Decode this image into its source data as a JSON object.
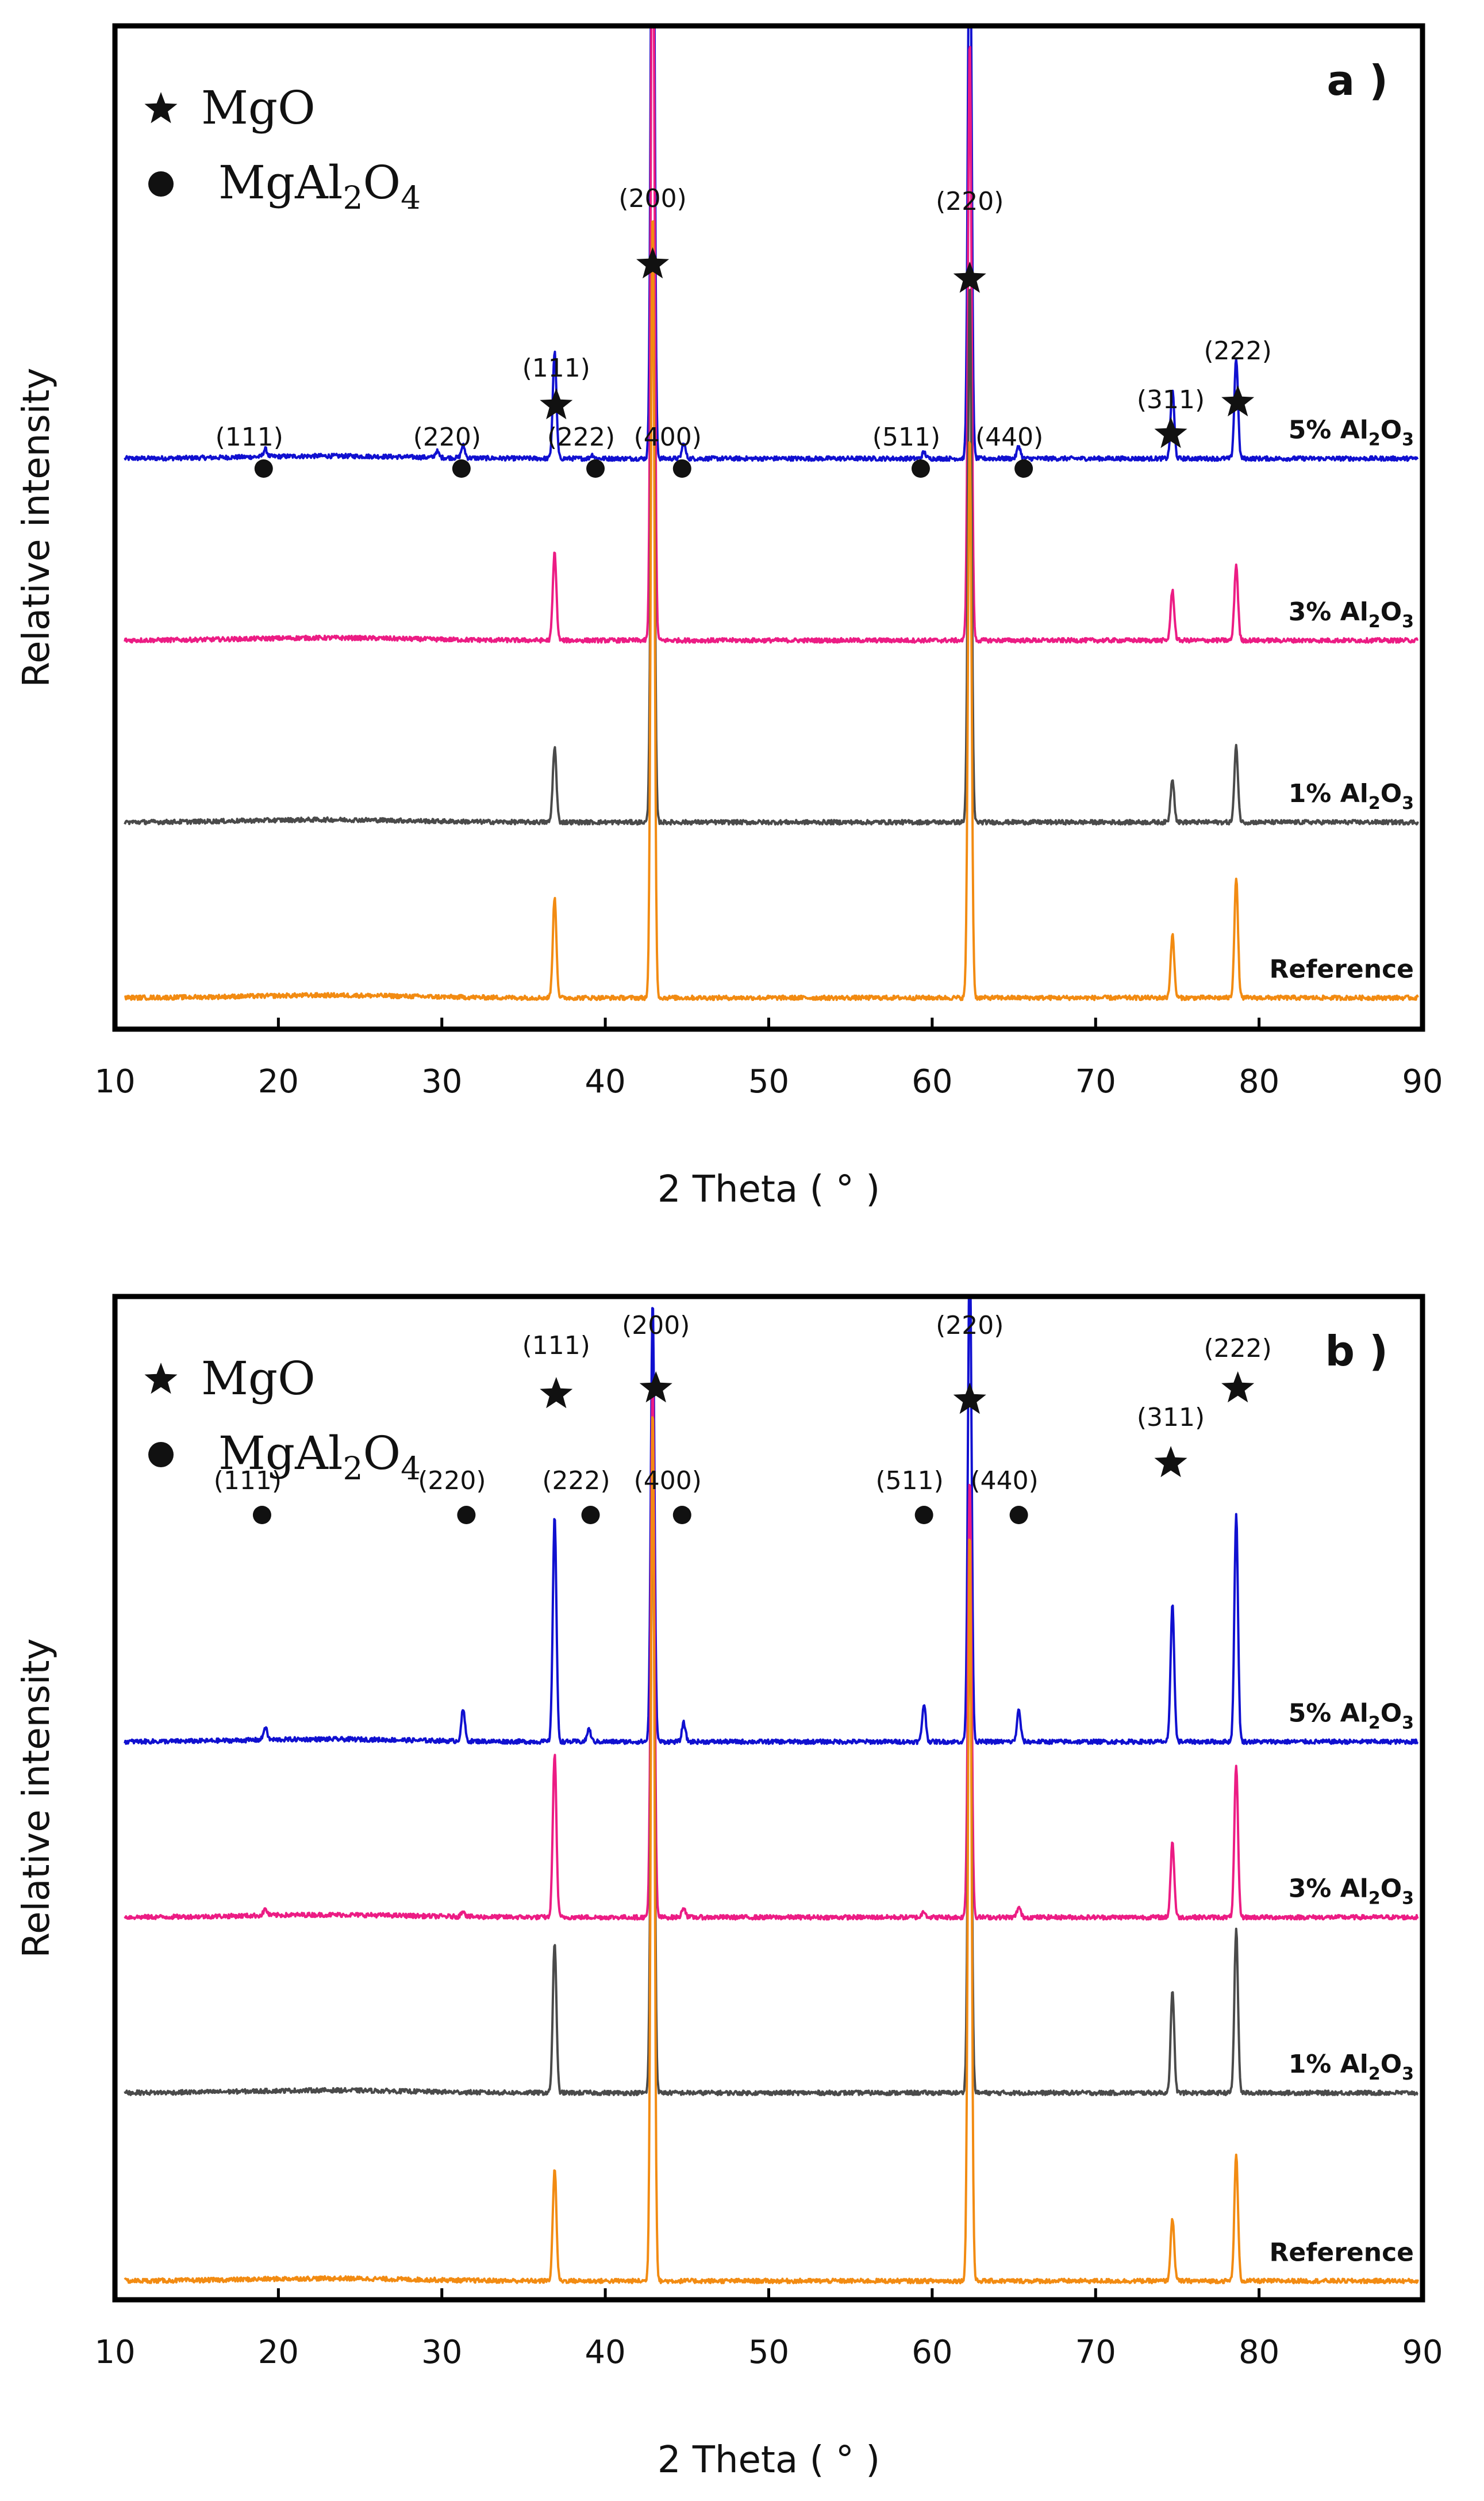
{
  "figure": {
    "legend": {
      "mgo_label": "MgO",
      "spinel_label_base": "MgAl",
      "spinel_sub1": "2",
      "spinel_mid": "O",
      "spinel_sub2": "4"
    },
    "x_axis_label": "2 Theta ( ° )",
    "y_axis_label": "Relative intensity"
  },
  "chart_data": [
    {
      "type": "line",
      "panel_label": "a )",
      "title": "",
      "xlabel": "2 Theta ( ° )",
      "ylabel": "Relative intensity",
      "xlim": [
        10,
        90
      ],
      "xticks": [
        10,
        20,
        30,
        40,
        50,
        60,
        70,
        80,
        90
      ],
      "yticks": [],
      "grid": false,
      "series": [
        {
          "name": "5% Al2O3",
          "label": "5% Al",
          "sub1": "2",
          "mid": "O",
          "sub2": "3",
          "color": "#1010d0",
          "baseline": 4.55,
          "peaks": [
            [
              19.2,
              0.06
            ],
            [
              29.7,
              0.05
            ],
            [
              31.3,
              0.1
            ],
            [
              36.9,
              0.85
            ],
            [
              39.2,
              0.03
            ],
            [
              42.9,
              6.0
            ],
            [
              44.8,
              0.12
            ],
            [
              59.5,
              0.05
            ],
            [
              62.3,
              4.8
            ],
            [
              65.3,
              0.1
            ],
            [
              74.7,
              0.55
            ],
            [
              78.6,
              0.8
            ]
          ]
        },
        {
          "name": "3% Al2O3",
          "label": "3% Al",
          "sub1": "2",
          "mid": "O",
          "sub2": "3",
          "color": "#ec1c84",
          "baseline": 3.1,
          "peaks": [
            [
              36.9,
              0.7
            ],
            [
              42.9,
              6.5
            ],
            [
              62.3,
              4.8
            ],
            [
              74.7,
              0.4
            ],
            [
              78.6,
              0.6
            ]
          ]
        },
        {
          "name": "1% Al2O3",
          "label": "1% Al",
          "sub1": "2",
          "mid": "O",
          "sub2": "3",
          "color": "#4a4a4a",
          "baseline": 1.65,
          "peaks": [
            [
              36.9,
              0.6
            ],
            [
              42.9,
              4.8
            ],
            [
              62.3,
              4.3
            ],
            [
              74.7,
              0.35
            ],
            [
              78.6,
              0.6
            ]
          ]
        },
        {
          "name": "Reference",
          "label": "Reference",
          "sub1": "",
          "mid": "",
          "sub2": "",
          "color": "#f28b12",
          "baseline": 0.25,
          "peaks": [
            [
              36.9,
              0.8
            ],
            [
              42.9,
              6.3
            ],
            [
              62.3,
              4.5
            ],
            [
              74.7,
              0.5
            ],
            [
              78.6,
              0.95
            ]
          ]
        }
      ],
      "mgo_annotations": [
        {
          "hkl": "(111)",
          "x": 37.0
        },
        {
          "hkl": "(200)",
          "x": 42.9
        },
        {
          "hkl": "(220)",
          "x": 62.3
        },
        {
          "hkl": "(311)",
          "x": 74.6
        },
        {
          "hkl": "(222)",
          "x": 78.7
        }
      ],
      "spinel_annotations": [
        {
          "hkl": "(111)",
          "x": 19.1
        },
        {
          "hkl": "(220)",
          "x": 31.2
        },
        {
          "hkl": "(222)",
          "x": 39.4
        },
        {
          "hkl": "(400)",
          "x": 44.7
        },
        {
          "hkl": "(511)",
          "x": 59.3
        },
        {
          "hkl": "(440)",
          "x": 65.6
        }
      ]
    },
    {
      "type": "line",
      "panel_label": "b )",
      "title": "",
      "xlabel": "2 Theta ( ° )",
      "ylabel": "Relative intensity",
      "xlim": [
        10,
        90
      ],
      "xticks": [
        10,
        20,
        30,
        40,
        50,
        60,
        70,
        80,
        90
      ],
      "yticks": [],
      "grid": false,
      "series": [
        {
          "name": "5% Al2O3",
          "label": "5% Al",
          "sub1": "2",
          "mid": "O",
          "sub2": "3",
          "color": "#1010d0",
          "baseline": 4.45,
          "peaks": [
            [
              19.2,
              0.1
            ],
            [
              31.3,
              0.25
            ],
            [
              36.9,
              1.8
            ],
            [
              39.0,
              0.1
            ],
            [
              42.9,
              3.5
            ],
            [
              44.8,
              0.15
            ],
            [
              59.5,
              0.3
            ],
            [
              62.3,
              4.0
            ],
            [
              65.3,
              0.25
            ],
            [
              74.7,
              1.1
            ],
            [
              78.6,
              1.8
            ]
          ]
        },
        {
          "name": "3% Al2O3",
          "label": "3% Al",
          "sub1": "2",
          "mid": "O",
          "sub2": "3",
          "color": "#ec1c84",
          "baseline": 3.05,
          "peaks": [
            [
              19.2,
              0.05
            ],
            [
              31.3,
              0.05
            ],
            [
              36.9,
              1.3
            ],
            [
              42.9,
              4.3
            ],
            [
              44.8,
              0.08
            ],
            [
              59.5,
              0.05
            ],
            [
              62.3,
              3.5
            ],
            [
              65.3,
              0.08
            ],
            [
              74.7,
              0.6
            ],
            [
              78.6,
              1.2
            ]
          ]
        },
        {
          "name": "1% Al2O3",
          "label": "1% Al",
          "sub1": "2",
          "mid": "O",
          "sub2": "3",
          "color": "#4a4a4a",
          "baseline": 1.65,
          "peaks": [
            [
              36.9,
              1.2
            ],
            [
              42.9,
              5.0
            ],
            [
              62.3,
              4.0
            ],
            [
              74.7,
              0.8
            ],
            [
              78.6,
              1.3
            ]
          ]
        },
        {
          "name": "Reference",
          "label": "Reference",
          "sub1": "",
          "mid": "",
          "sub2": "",
          "color": "#f28b12",
          "baseline": 0.15,
          "peaks": [
            [
              36.9,
              0.9
            ],
            [
              42.9,
              7.0
            ],
            [
              62.3,
              6.0
            ],
            [
              74.7,
              0.5
            ],
            [
              78.6,
              1.0
            ]
          ]
        }
      ],
      "mgo_annotations": [
        {
          "hkl": "(111)",
          "x": 37.0
        },
        {
          "hkl": "(200)",
          "x": 43.1
        },
        {
          "hkl": "(220)",
          "x": 62.3
        },
        {
          "hkl": "(311)",
          "x": 74.6
        },
        {
          "hkl": "(222)",
          "x": 78.7
        }
      ],
      "spinel_annotations": [
        {
          "hkl": "(111)",
          "x": 19.0
        },
        {
          "hkl": "(220)",
          "x": 31.5
        },
        {
          "hkl": "(222)",
          "x": 39.1
        },
        {
          "hkl": "(400)",
          "x": 44.7
        },
        {
          "hkl": "(511)",
          "x": 59.5
        },
        {
          "hkl": "(440)",
          "x": 65.3
        }
      ]
    }
  ]
}
